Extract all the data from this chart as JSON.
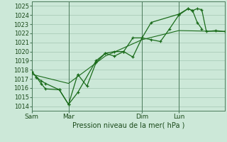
{
  "title": "",
  "xlabel": "Pression niveau de la mer( hPa )",
  "ylabel": "",
  "bg_color": "#cce8d8",
  "grid_color": "#aaccb8",
  "line_color": "#1a6b1a",
  "vline_color": "#4a7a5a",
  "ylim": [
    1013.5,
    1025.5
  ],
  "yticks": [
    1014,
    1015,
    1016,
    1017,
    1018,
    1019,
    1020,
    1021,
    1022,
    1023,
    1024,
    1025
  ],
  "day_labels": [
    "Sam",
    "Mar",
    "Dim",
    "Lun"
  ],
  "day_positions": [
    0,
    48,
    144,
    192
  ],
  "total_hours": 252,
  "series1": {
    "x": [
      0,
      6,
      12,
      18,
      36,
      48,
      60,
      72,
      84,
      96,
      108,
      120,
      132,
      144,
      156,
      168,
      180,
      192,
      204,
      210,
      216,
      222,
      228,
      240,
      252
    ],
    "y": [
      1017.8,
      1017.2,
      1016.8,
      1016.5,
      1015.8,
      1014.2,
      1017.5,
      1016.2,
      1018.8,
      1019.8,
      1019.5,
      1020.0,
      1019.4,
      1021.5,
      1021.3,
      1021.1,
      1022.5,
      1024.0,
      1024.7,
      1024.5,
      1024.7,
      1024.6,
      1022.2,
      1022.3,
      1022.2
    ]
  },
  "series2": {
    "x": [
      0,
      6,
      12,
      18,
      36,
      48,
      60,
      84,
      96,
      108,
      120,
      132,
      144,
      156,
      192,
      204,
      210,
      216,
      222
    ],
    "y": [
      1017.8,
      1017.2,
      1016.5,
      1015.9,
      1015.8,
      1014.2,
      1015.5,
      1019.0,
      1019.8,
      1020.0,
      1020.0,
      1021.5,
      1021.5,
      1023.2,
      1024.1,
      1024.7,
      1024.5,
      1023.2,
      1022.5
    ]
  },
  "series3": {
    "x": [
      0,
      48,
      96,
      144,
      192,
      252
    ],
    "y": [
      1017.5,
      1016.5,
      1019.5,
      1021.3,
      1022.3,
      1022.2
    ]
  }
}
